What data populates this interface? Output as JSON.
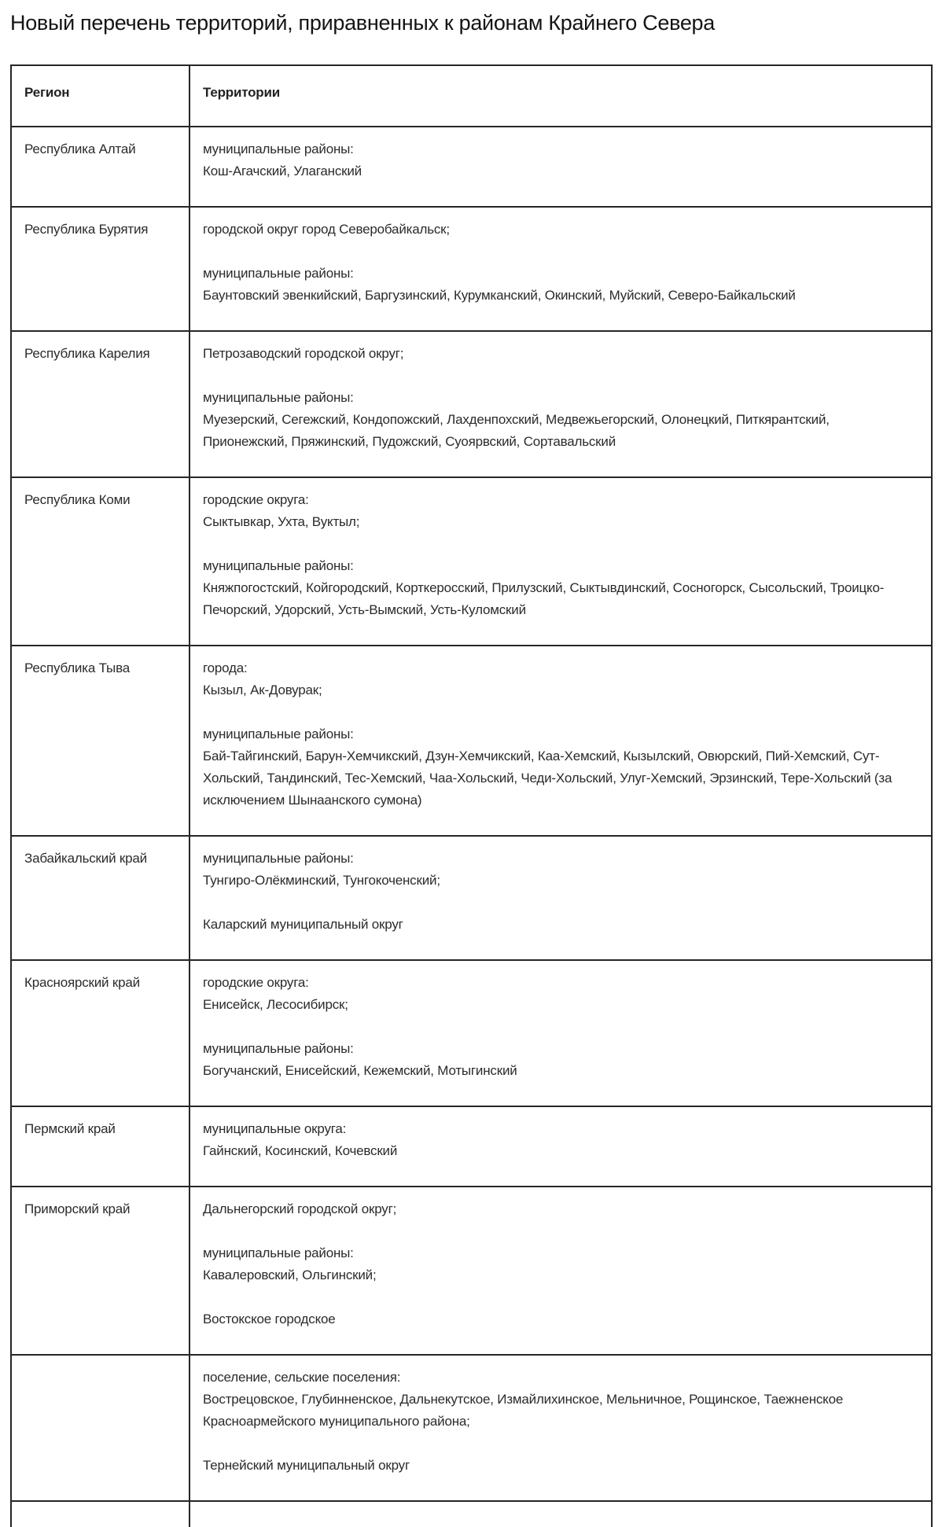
{
  "page": {
    "title": "Новый перечень территорий, приравненных к районам Крайнего Севера"
  },
  "table": {
    "columns": [
      "Регион",
      "Территории"
    ],
    "rows": [
      {
        "region": "Республика Алтай",
        "territories": "муниципальные районы:\nКош-Агачский, Улаганский"
      },
      {
        "region": "Республика Бурятия",
        "territories": "городской округ город Северобайкальск;\n\nмуниципальные районы:\nБаунтовский эвенкийский, Баргузинский, Курумканский, Окинский, Муйский, Северо-Байкальский"
      },
      {
        "region": "Республика Карелия",
        "territories": "Петрозаводский городской округ;\n\nмуниципальные районы:\nМуезерский, Сегежский, Кондопожский, Лахденпохский, Медвежьегорский, Олонецкий, Питкярантский, Прионежский, Пряжинский, Пудожский, Суоярвский, Сортавальский"
      },
      {
        "region": "Республика Коми",
        "territories": "городские округа:\nСыктывкар, Ухта, Вуктыл;\n\nмуниципальные районы:\nКняжпогостский, Койгородский, Корткеросский, Прилузский, Сыктывдинский, Сосногорск, Сысольский, Троицко-Печорский, Удорский, Усть-Вымский, Усть-Куломский"
      },
      {
        "region": "Республика Тыва",
        "territories": "города:\nКызыл, Ак-Довурак;\n\nмуниципальные районы:\nБай-Тайгинский, Барун-Хемчикский, Дзун-Хемчикский, Каа-Хемский, Кызылский, Овюрский, Пий-Хемский, Сут-Хольский, Тандинский, Тес-Хемский, Чаа-Хольский, Чеди-Хольский, Улуг-Хемский, Эрзинский, Тере-Хольский (за исключением Шынаанского сумона)"
      },
      {
        "region": "Забайкальский край",
        "territories": "муниципальные районы:\nТунгиро-Олёкминский, Тунгокоченский;\n\nКаларский муниципальный округ"
      },
      {
        "region": "Красноярский край",
        "territories": "городские округа:\nЕнисейск, Лесосибирск;\n\nмуниципальные районы:\nБогучанский, Енисейский, Кежемский, Мотыгинский"
      },
      {
        "region": "Пермский край",
        "territories": "муниципальные округа:\nГайнский, Косинский, Кочевский"
      },
      {
        "region": "Приморский край",
        "territories": "Дальнегорский городской округ;\n\nмуниципальные районы:\nКавалеровский, Ольгинский;\n\nВостокское городское"
      },
      {
        "region": "",
        "territories": "поселение, сельские поселения:\nВострецовское, Глубинненское, Дальнекутское, Измайлихинское, Мельничное, Рощинское, Таежненское Красноармейского муниципального района;\n\nТернейский муниципальный округ"
      }
    ]
  }
}
